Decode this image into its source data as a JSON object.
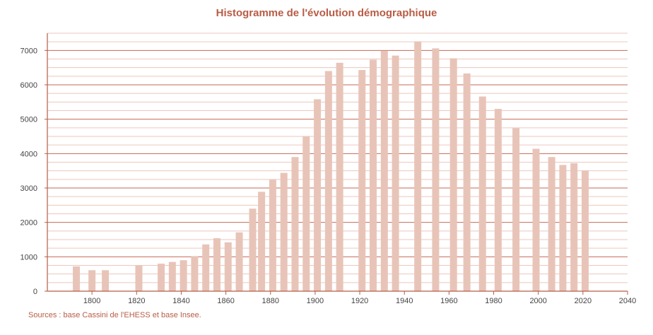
{
  "chart_data": {
    "type": "bar",
    "title": "Histogramme de l'évolution démographique",
    "source": "Sources : base Cassini de l'EHESS et base Insee.",
    "xlim": [
      1780,
      2040
    ],
    "ylim": [
      0,
      7500
    ],
    "x_ticks": [
      1800,
      1820,
      1840,
      1860,
      1880,
      1900,
      1920,
      1940,
      1960,
      1980,
      2000,
      2020,
      2040
    ],
    "y_ticks": [
      0,
      1000,
      2000,
      3000,
      4000,
      5000,
      6000,
      7000
    ],
    "grid": true,
    "colors": {
      "bar": "#e8c4b8",
      "grid_major": "#c46a55",
      "grid_minor": "#ecc7bd",
      "title": "#b85c45",
      "axis": "#b85c45"
    },
    "points": [
      {
        "x": 1793,
        "y": 720
      },
      {
        "x": 1800,
        "y": 610
      },
      {
        "x": 1806,
        "y": 610
      },
      {
        "x": 1821,
        "y": 750
      },
      {
        "x": 1831,
        "y": 800
      },
      {
        "x": 1836,
        "y": 850
      },
      {
        "x": 1841,
        "y": 900
      },
      {
        "x": 1846,
        "y": 1020
      },
      {
        "x": 1851,
        "y": 1360
      },
      {
        "x": 1856,
        "y": 1540
      },
      {
        "x": 1861,
        "y": 1420
      },
      {
        "x": 1866,
        "y": 1710
      },
      {
        "x": 1872,
        "y": 2400
      },
      {
        "x": 1876,
        "y": 2890
      },
      {
        "x": 1881,
        "y": 3240
      },
      {
        "x": 1886,
        "y": 3440
      },
      {
        "x": 1891,
        "y": 3900
      },
      {
        "x": 1896,
        "y": 4510
      },
      {
        "x": 1901,
        "y": 5580
      },
      {
        "x": 1906,
        "y": 6400
      },
      {
        "x": 1911,
        "y": 6640
      },
      {
        "x": 1921,
        "y": 6430
      },
      {
        "x": 1926,
        "y": 6730
      },
      {
        "x": 1931,
        "y": 6990
      },
      {
        "x": 1936,
        "y": 6850
      },
      {
        "x": 1946,
        "y": 7260
      },
      {
        "x": 1954,
        "y": 7060
      },
      {
        "x": 1962,
        "y": 6770
      },
      {
        "x": 1968,
        "y": 6330
      },
      {
        "x": 1975,
        "y": 5660
      },
      {
        "x": 1982,
        "y": 5300
      },
      {
        "x": 1990,
        "y": 4740
      },
      {
        "x": 1999,
        "y": 4140
      },
      {
        "x": 2006,
        "y": 3900
      },
      {
        "x": 2011,
        "y": 3670
      },
      {
        "x": 2016,
        "y": 3720
      },
      {
        "x": 2021,
        "y": 3510
      }
    ]
  }
}
